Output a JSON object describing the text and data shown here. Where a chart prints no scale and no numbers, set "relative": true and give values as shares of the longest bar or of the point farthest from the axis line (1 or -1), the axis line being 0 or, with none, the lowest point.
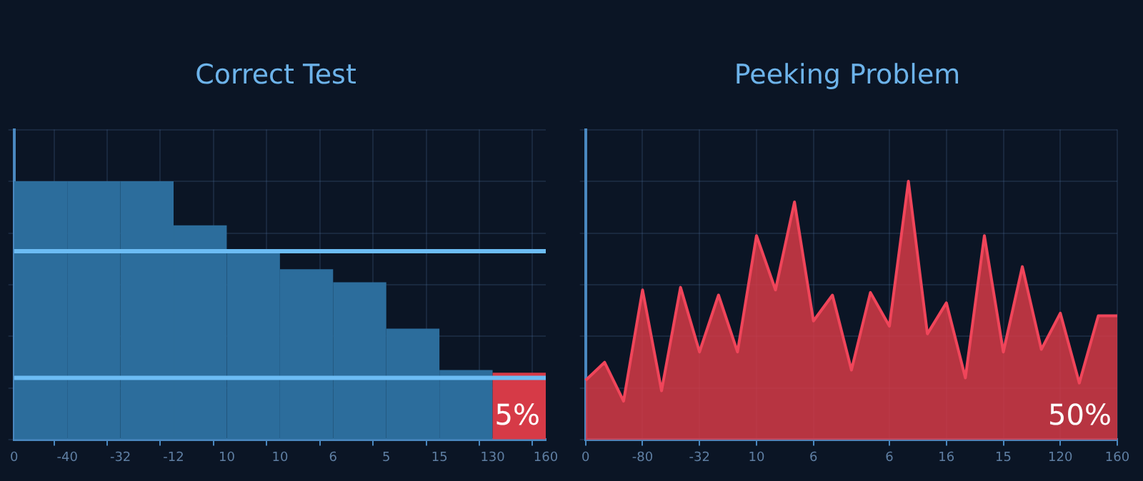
{
  "chart_data": [
    {
      "type": "bar",
      "title": "Correct Test",
      "relative": true,
      "categories": [
        "0",
        null,
        "-40",
        null,
        "-32",
        null,
        "-12",
        null,
        "10",
        null,
        "10",
        null,
        "6",
        null,
        "5",
        null,
        "15",
        null,
        "130",
        null,
        "160"
      ],
      "values": [
        null,
        1,
        null,
        1,
        null,
        1,
        null,
        0.83,
        null,
        0.73,
        null,
        0.66,
        null,
        0.61,
        null,
        0.43,
        null,
        0.27,
        null,
        0.26,
        null
      ],
      "colors": [
        null,
        "#2c6d9c",
        null,
        "#2c6d9c",
        null,
        "#2c6d9c",
        null,
        "#2c6d9c",
        null,
        "#2c6d9c",
        null,
        "#2c6d9c",
        null,
        "#2c6d9c",
        null,
        "#2c6d9c",
        null,
        "#2c6d9c",
        null,
        "#d63a47",
        null
      ],
      "ref_lines": [
        {
          "axis": "y",
          "value": 0.73,
          "color": "#6cbcf4"
        },
        {
          "axis": "y",
          "value": 0.24,
          "color": "#6cbcf4"
        }
      ],
      "annotations": [
        "5%"
      ],
      "grid": true
    },
    {
      "type": "area",
      "title": "Peeking Problem",
      "relative": true,
      "categories": [
        "0",
        null,
        null,
        "-80",
        null,
        null,
        "-32",
        null,
        null,
        "10",
        null,
        null,
        "6",
        null,
        null,
        null,
        "6",
        null,
        null,
        "16",
        null,
        null,
        "15",
        null,
        null,
        "120",
        null,
        null,
        "160"
      ],
      "series": [
        {
          "color": "#d63a47",
          "values": [
            0.23,
            0.3,
            0.15,
            0.58,
            0.19,
            0.59,
            0.34,
            0.56,
            0.34,
            0.79,
            0.58,
            0.92,
            0.46,
            0.56,
            0.27,
            0.57,
            0.44,
            1,
            0.41,
            0.53,
            0.24,
            0.79,
            0.34,
            0.67,
            0.35,
            0.49,
            0.22,
            0.48,
            0.48
          ]
        }
      ],
      "annotations": [
        "50%"
      ],
      "grid": true
    }
  ]
}
